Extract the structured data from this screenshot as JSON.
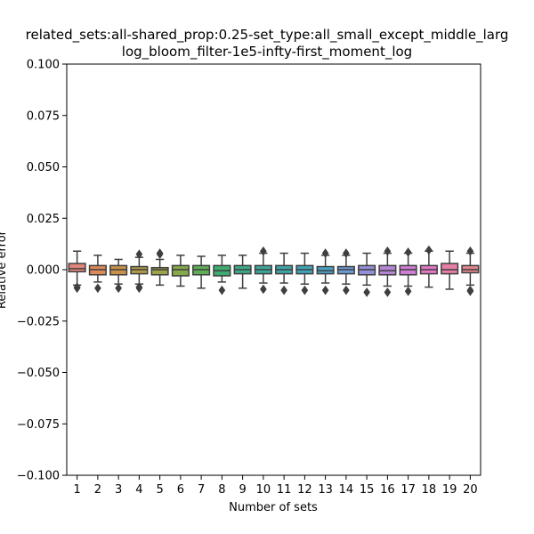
{
  "chart_data": {
    "type": "box",
    "title_lines": [
      "related_sets:all-shared_prop:0.25-set_type:all_small_except_middle_larg",
      "log_bloom_filter-1e5-infty-first_moment_log"
    ],
    "xlabel": "Number of sets",
    "ylabel": "Relative error",
    "ylim": [
      -0.1,
      0.1
    ],
    "yticks": [
      "0.100",
      "0.075",
      "0.050",
      "0.025",
      "0.000",
      "−0.025",
      "−0.050",
      "−0.075",
      "−0.100"
    ],
    "ytick_values": [
      0.1,
      0.075,
      0.05,
      0.025,
      0.0,
      -0.025,
      -0.05,
      -0.075,
      -0.1
    ],
    "categories": [
      "1",
      "2",
      "3",
      "4",
      "5",
      "6",
      "7",
      "8",
      "9",
      "10",
      "11",
      "12",
      "13",
      "14",
      "15",
      "16",
      "17",
      "18",
      "19",
      "20"
    ],
    "colors": [
      "#e1847b",
      "#dd8a5a",
      "#c99147",
      "#b29b48",
      "#9ea34b",
      "#86a94b",
      "#5fae57",
      "#3eab71",
      "#3ea989",
      "#3ea79b",
      "#3ea6a8",
      "#3fa5b7",
      "#4ba2c8",
      "#6c9bd8",
      "#958fd9",
      "#b585d6",
      "#cf7dd4",
      "#e377c5",
      "#e57fa6",
      "#e2858d"
    ],
    "boxes": [
      {
        "whislo": -0.0075,
        "q1": -0.001,
        "med": 0.0005,
        "q3": 0.003,
        "whishi": 0.009,
        "fliers": [
          -0.0085,
          -0.009
        ]
      },
      {
        "whislo": -0.006,
        "q1": -0.0025,
        "med": 0.0,
        "q3": 0.002,
        "whishi": 0.007,
        "fliers": [
          -0.009
        ]
      },
      {
        "whislo": -0.007,
        "q1": -0.0025,
        "med": 0.0,
        "q3": 0.002,
        "whishi": 0.005,
        "fliers": [
          -0.009
        ]
      },
      {
        "whislo": -0.007,
        "q1": -0.002,
        "med": 0.0,
        "q3": 0.0015,
        "whishi": 0.006,
        "fliers": [
          0.0075,
          -0.0085,
          -0.009
        ]
      },
      {
        "whislo": -0.0075,
        "q1": -0.0025,
        "med": 0.0,
        "q3": 0.001,
        "whishi": 0.005,
        "fliers": [
          0.0075,
          0.008
        ]
      },
      {
        "whislo": -0.008,
        "q1": -0.003,
        "med": 0.0,
        "q3": 0.002,
        "whishi": 0.007,
        "fliers": []
      },
      {
        "whislo": -0.009,
        "q1": -0.0025,
        "med": 0.0,
        "q3": 0.002,
        "whishi": 0.0065,
        "fliers": []
      },
      {
        "whislo": -0.006,
        "q1": -0.003,
        "med": -0.0005,
        "q3": 0.002,
        "whishi": 0.007,
        "fliers": [
          -0.01
        ]
      },
      {
        "whislo": -0.009,
        "q1": -0.002,
        "med": 0.0,
        "q3": 0.002,
        "whishi": 0.007,
        "fliers": []
      },
      {
        "whislo": -0.0065,
        "q1": -0.002,
        "med": 0.0,
        "q3": 0.002,
        "whishi": 0.008,
        "fliers": [
          0.009,
          -0.0095
        ]
      },
      {
        "whislo": -0.0065,
        "q1": -0.002,
        "med": 0.0,
        "q3": 0.002,
        "whishi": 0.008,
        "fliers": [
          -0.01
        ]
      },
      {
        "whislo": -0.007,
        "q1": -0.002,
        "med": 0.0,
        "q3": 0.002,
        "whishi": 0.008,
        "fliers": [
          -0.01
        ]
      },
      {
        "whislo": -0.0065,
        "q1": -0.002,
        "med": -0.0005,
        "q3": 0.0015,
        "whishi": 0.007,
        "fliers": [
          0.008,
          -0.01
        ]
      },
      {
        "whislo": -0.007,
        "q1": -0.002,
        "med": 0.0,
        "q3": 0.0015,
        "whishi": 0.007,
        "fliers": [
          0.008,
          -0.01
        ]
      },
      {
        "whislo": -0.0075,
        "q1": -0.0025,
        "med": 0.0,
        "q3": 0.002,
        "whishi": 0.008,
        "fliers": [
          -0.011
        ]
      },
      {
        "whislo": -0.008,
        "q1": -0.0025,
        "med": -0.0005,
        "q3": 0.002,
        "whishi": 0.008,
        "fliers": [
          0.009,
          -0.011
        ]
      },
      {
        "whislo": -0.008,
        "q1": -0.0025,
        "med": 0.0,
        "q3": 0.002,
        "whishi": 0.008,
        "fliers": [
          0.0085,
          -0.0105
        ]
      },
      {
        "whislo": -0.0085,
        "q1": -0.002,
        "med": 0.0,
        "q3": 0.002,
        "whishi": 0.009,
        "fliers": [
          0.0095
        ]
      },
      {
        "whislo": -0.0095,
        "q1": -0.002,
        "med": 0.0,
        "q3": 0.003,
        "whishi": 0.009,
        "fliers": []
      },
      {
        "whislo": -0.0075,
        "q1": -0.0015,
        "med": 0.0,
        "q3": 0.002,
        "whishi": 0.008,
        "fliers": [
          0.009,
          -0.0105,
          -0.01
        ]
      }
    ]
  }
}
